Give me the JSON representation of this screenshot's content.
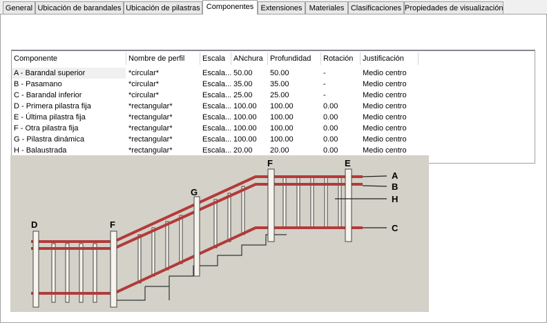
{
  "tabs": [
    "General",
    "Ubicación de barandales",
    "Ubicación de pilastras",
    "Componentes",
    "Extensiones",
    "Materiales",
    "Clasificaciones",
    "Propiedades de visualización"
  ],
  "active_tab": "Componentes",
  "table": {
    "headers": [
      "Componente",
      "Nombre de perfil",
      "Escala",
      "ANchura",
      "Profundidad",
      "Rotación",
      "Justificación"
    ],
    "rows": [
      [
        "A - Barandal superior",
        "*circular*",
        "Escala...",
        "50.00",
        "50.00",
        "-",
        "Medio centro"
      ],
      [
        "B - Pasamano",
        "*circular*",
        "Escala...",
        "35.00",
        "35.00",
        "-",
        "Medio centro"
      ],
      [
        "C - Barandal inferior",
        "*circular*",
        "Escala...",
        "25.00",
        "25.00",
        "-",
        "Medio centro"
      ],
      [
        "D - Primera pilastra fija",
        "*rectangular*",
        "Escala...",
        "100.00",
        "100.00",
        "0.00",
        "Medio centro"
      ],
      [
        "E - Última pilastra fija",
        "*rectangular*",
        "Escala...",
        "100.00",
        "100.00",
        "0.00",
        "Medio centro"
      ],
      [
        "F - Otra pilastra fija",
        "*rectangular*",
        "Escala...",
        "100.00",
        "100.00",
        "0.00",
        "Medio centro"
      ],
      [
        "G - Pilastra dinámica",
        "*rectangular*",
        "Escala...",
        "100.00",
        "100.00",
        "0.00",
        "Medio centro"
      ],
      [
        "H - Balaustrada",
        "*rectangular*",
        "Escala...",
        "20.00",
        "20.00",
        "0.00",
        "Medio centro"
      ]
    ]
  },
  "diagram": {
    "labels": [
      "A",
      "B",
      "H",
      "C",
      "D",
      "F",
      "G",
      "F",
      "E"
    ]
  }
}
